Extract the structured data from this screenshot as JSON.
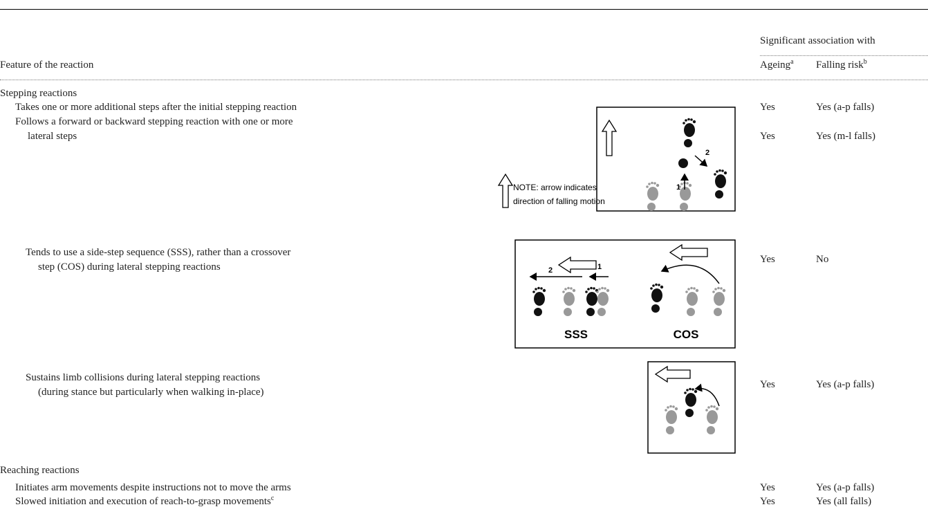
{
  "table": {
    "group_header": "Significant association with",
    "columns": [
      {
        "label": "Feature of the reaction"
      },
      {
        "label": "Ageing",
        "sup": "a"
      },
      {
        "label": "Falling risk",
        "sup": "b"
      }
    ],
    "rows": [
      {
        "section": "Stepping reactions"
      },
      {
        "feature": [
          "Takes one or more additional steps after the initial stepping reaction"
        ],
        "ageing": "Yes",
        "falling": "Yes (a-p falls)"
      },
      {
        "feature": [
          "Follows a forward or backward stepping reaction with one or more",
          "lateral steps"
        ],
        "ageing": "Yes",
        "falling": "Yes (m-l falls)"
      },
      {
        "feature": [
          "Tends to use a side-step sequence (SSS), rather than a crossover",
          "step (COS) during lateral stepping reactions"
        ],
        "ageing": "Yes",
        "falling": "No"
      },
      {
        "feature": [
          "Sustains limb collisions during lateral stepping reactions",
          "(during stance but particularly when walking in-place)"
        ],
        "ageing": "Yes",
        "falling": "Yes (a-p falls)"
      },
      {
        "section": "Reaching reactions"
      },
      {
        "feature": [
          "Initiates arm movements despite instructions not to move the arms"
        ],
        "ageing": "Yes",
        "falling": "Yes (a-p falls)"
      },
      {
        "feature": [
          "Slowed initiation and execution of reach-to-grasp movements"
        ],
        "sup": "c",
        "ageing": "Yes",
        "falling": "Yes (all falls)"
      }
    ]
  },
  "figures": {
    "stepping": {
      "note": [
        "NOTE: arrow indicates",
        "direction of falling motion"
      ],
      "labels": [
        "1",
        "2"
      ]
    },
    "sss_cos": {
      "labels": [
        "2",
        "1",
        "SSS",
        "COS"
      ]
    }
  }
}
